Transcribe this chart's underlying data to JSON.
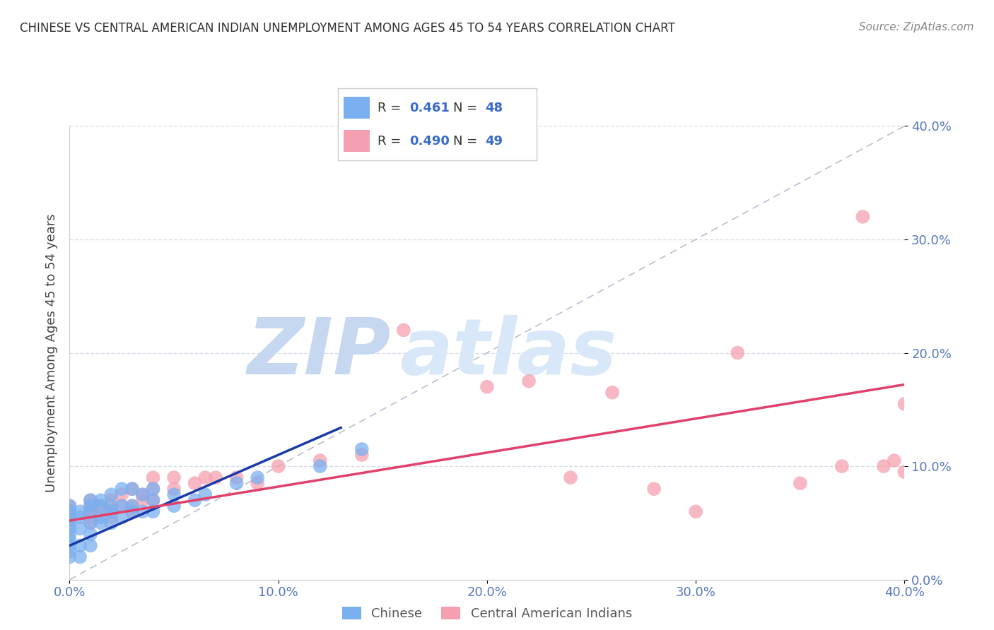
{
  "title": "CHINESE VS CENTRAL AMERICAN INDIAN UNEMPLOYMENT AMONG AGES 45 TO 54 YEARS CORRELATION CHART",
  "source": "Source: ZipAtlas.com",
  "ylabel": "Unemployment Among Ages 45 to 54 years",
  "xlim": [
    0.0,
    0.4
  ],
  "ylim": [
    0.0,
    0.4
  ],
  "xticks": [
    0.0,
    0.1,
    0.2,
    0.3,
    0.4
  ],
  "yticks": [
    0.0,
    0.1,
    0.2,
    0.3,
    0.4
  ],
  "xtick_labels": [
    "0.0%",
    "10.0%",
    "20.0%",
    "30.0%",
    "40.0%"
  ],
  "ytick_labels": [
    "0.0%",
    "10.0%",
    "20.0%",
    "30.0%",
    "40.0%"
  ],
  "legend_labels": [
    "Chinese",
    "Central American Indians"
  ],
  "R_chinese": 0.461,
  "N_chinese": 48,
  "R_central": 0.49,
  "N_central": 49,
  "chinese_color": "#7aaff0",
  "central_color": "#f5a0b0",
  "chinese_line_color": "#1a3aaa",
  "central_line_color": "#e0406a",
  "ref_line_color": "#b0b8c8",
  "watermark_zip_color": "#c5d8f0",
  "watermark_atlas_color": "#d8e8f8",
  "background_color": "#ffffff",
  "grid_color": "#d8dde8",
  "tick_color": "#5577bb",
  "chinese_x": [
    0.0,
    0.0,
    0.0,
    0.0,
    0.0,
    0.0,
    0.0,
    0.0,
    0.0,
    0.0,
    0.005,
    0.005,
    0.005,
    0.005,
    0.005,
    0.01,
    0.01,
    0.01,
    0.01,
    0.01,
    0.01,
    0.015,
    0.015,
    0.015,
    0.015,
    0.02,
    0.02,
    0.02,
    0.02,
    0.025,
    0.025,
    0.025,
    0.03,
    0.03,
    0.03,
    0.035,
    0.035,
    0.04,
    0.04,
    0.04,
    0.05,
    0.05,
    0.06,
    0.065,
    0.08,
    0.09,
    0.12,
    0.14
  ],
  "chinese_y": [
    0.02,
    0.025,
    0.03,
    0.035,
    0.04,
    0.045,
    0.05,
    0.055,
    0.06,
    0.065,
    0.02,
    0.03,
    0.045,
    0.055,
    0.06,
    0.03,
    0.04,
    0.05,
    0.06,
    0.065,
    0.07,
    0.05,
    0.055,
    0.065,
    0.07,
    0.05,
    0.06,
    0.065,
    0.075,
    0.055,
    0.065,
    0.08,
    0.06,
    0.065,
    0.08,
    0.06,
    0.075,
    0.06,
    0.07,
    0.08,
    0.065,
    0.075,
    0.07,
    0.075,
    0.085,
    0.09,
    0.1,
    0.115
  ],
  "central_x": [
    0.0,
    0.0,
    0.0,
    0.0,
    0.01,
    0.01,
    0.01,
    0.01,
    0.01,
    0.015,
    0.015,
    0.02,
    0.02,
    0.02,
    0.025,
    0.025,
    0.03,
    0.03,
    0.03,
    0.035,
    0.035,
    0.04,
    0.04,
    0.04,
    0.05,
    0.05,
    0.06,
    0.065,
    0.07,
    0.08,
    0.09,
    0.1,
    0.12,
    0.14,
    0.16,
    0.2,
    0.22,
    0.24,
    0.26,
    0.28,
    0.3,
    0.32,
    0.35,
    0.37,
    0.38,
    0.39,
    0.395,
    0.4,
    0.4
  ],
  "central_y": [
    0.05,
    0.055,
    0.06,
    0.065,
    0.05,
    0.055,
    0.06,
    0.065,
    0.07,
    0.06,
    0.065,
    0.055,
    0.06,
    0.07,
    0.065,
    0.075,
    0.06,
    0.065,
    0.08,
    0.07,
    0.075,
    0.07,
    0.08,
    0.09,
    0.08,
    0.09,
    0.085,
    0.09,
    0.09,
    0.09,
    0.085,
    0.1,
    0.105,
    0.11,
    0.22,
    0.17,
    0.175,
    0.09,
    0.165,
    0.08,
    0.06,
    0.2,
    0.085,
    0.1,
    0.32,
    0.1,
    0.105,
    0.095,
    0.155
  ],
  "blue_line_x": [
    0.0,
    0.13
  ],
  "blue_line_y_intercept": 0.03,
  "blue_line_slope": 0.8,
  "pink_line_x": [
    0.0,
    0.4
  ],
  "pink_line_y_intercept": 0.052,
  "pink_line_slope": 0.3
}
